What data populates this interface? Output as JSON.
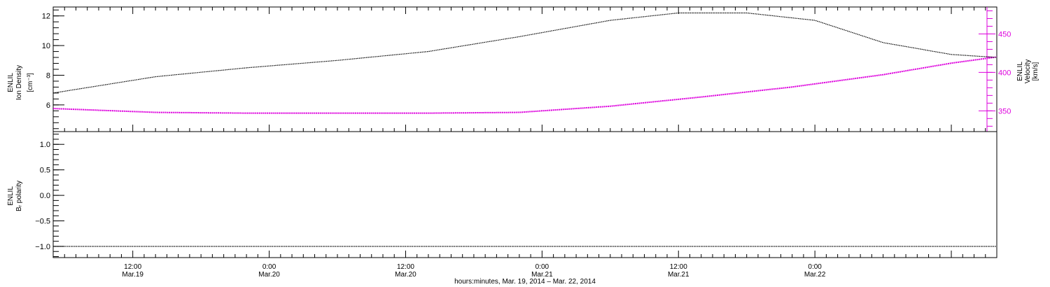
{
  "chart_data": [
    {
      "type": "line",
      "panel": "top",
      "x_unit": "hours since Mar.19 00:00",
      "xlim": [
        5.0,
        88.0
      ],
      "grid": false,
      "left_axis": {
        "label_lines": [
          "ENLIL",
          "Ion Density",
          "[cm⁻³]"
        ],
        "ylim": [
          4.2,
          12.6
        ],
        "ticks": [
          6,
          8,
          10,
          12
        ],
        "tick_labels": [
          "6",
          "8",
          "10",
          "12"
        ]
      },
      "right_axis": {
        "label_lines": [
          "ENLIL",
          "Velocity",
          "[km/s]"
        ],
        "ylim": [
          323,
          485
        ],
        "ticks": [
          350,
          400,
          450
        ],
        "tick_labels": [
          "350",
          "400",
          "450"
        ],
        "color": "#dd00dd"
      },
      "series": [
        {
          "axis": "left",
          "color": "#000000",
          "x": [
            5,
            14,
            22,
            30,
            38,
            46,
            54,
            60,
            66,
            72,
            78,
            84,
            88
          ],
          "y": [
            6.8,
            7.9,
            8.5,
            9.0,
            9.6,
            10.6,
            11.7,
            12.2,
            12.2,
            11.7,
            10.2,
            9.4,
            9.2
          ]
        },
        {
          "axis": "right",
          "color": "#dd00dd",
          "x": [
            5,
            14,
            22,
            30,
            38,
            46,
            54,
            62,
            70,
            78,
            84,
            88
          ],
          "y": [
            353,
            348,
            347,
            347,
            347,
            348,
            356,
            368,
            381,
            397,
            412,
            420
          ]
        }
      ]
    },
    {
      "type": "line",
      "panel": "bottom",
      "x_unit": "hours since Mar.19 00:00",
      "xlim": [
        5.0,
        88.0
      ],
      "grid": false,
      "left_axis": {
        "label_lines": [
          "ENLIL",
          "Bᵣ polarity"
        ],
        "ylim": [
          -1.22,
          1.25
        ],
        "ticks": [
          -1.0,
          -0.5,
          0.0,
          0.5,
          1.0
        ],
        "tick_labels": [
          "−1.0",
          "−0.5",
          "0.0",
          "0.5",
          "1.0"
        ]
      },
      "series": [
        {
          "axis": "left",
          "color": "#000000",
          "x": [
            5,
            88
          ],
          "y": [
            -1.0,
            -1.0
          ]
        }
      ]
    }
  ],
  "x_axis": {
    "ticks": [
      {
        "x": 12,
        "time": "12:00",
        "date": "Mar.19"
      },
      {
        "x": 24,
        "time": "0:00",
        "date": "Mar.20"
      },
      {
        "x": 36,
        "time": "12:00",
        "date": "Mar.20"
      },
      {
        "x": 48,
        "time": "0:00",
        "date": "Mar.21"
      },
      {
        "x": 60,
        "time": "12:00",
        "date": "Mar.21"
      },
      {
        "x": 72,
        "time": "0:00",
        "date": "Mar.22"
      }
    ],
    "title": "hours:minutes, Mar. 19, 2014 – Mar. 22, 2014"
  }
}
